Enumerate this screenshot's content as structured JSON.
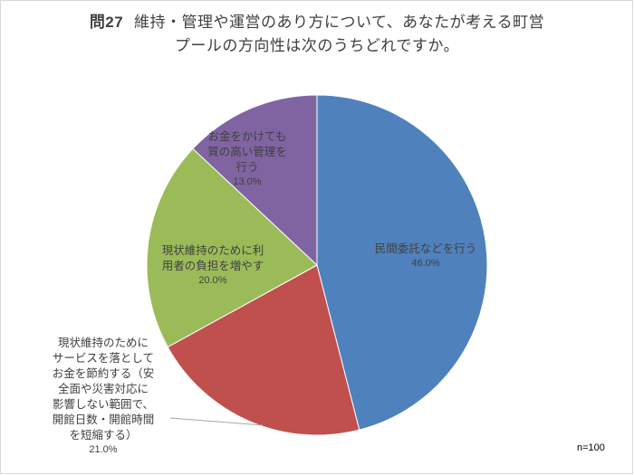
{
  "chart_data": {
    "type": "pie",
    "title_prefix": "問27",
    "title_line1": "維持・管理や運営のあり方について、あなたが考える町営",
    "title_line2": "プールの方向性は次のうちどれですか。",
    "title": "問27 維持・管理や運営のあり方について、あなたが考える町営プールの方向性は次のうちどれですか。",
    "categories": [
      "民間委託などを行う",
      "現状維持のためにサービスを落としてお金を節約する（安全面や災害対応に影響しない範囲で、開館日数・開館時間を短縮する）",
      "現状維持のために利用者の負担を増やす",
      "お金をかけても質の高い管理を行う"
    ],
    "values": [
      46.0,
      21.0,
      20.0,
      13.0
    ],
    "value_labels": [
      "46.0%",
      "21.0%",
      "20.0%",
      "13.0%"
    ],
    "colors": [
      "#4F81BD",
      "#C0504D",
      "#9BBB59",
      "#8064A2"
    ],
    "start_angle": "12 o'clock, clockwise",
    "legend": "none (data labels on slices)",
    "annotation": "n=100"
  },
  "labels": {
    "s0": {
      "lines": [
        "民間委託などを行う"
      ],
      "pct": "46.0%"
    },
    "s1": {
      "lines": [
        "現状維持のために",
        "サービスを落として",
        "お金を節約する（安",
        "全面や災害対応に",
        "影響しない範囲で、",
        "開館日数・開館時間",
        "を短縮する）"
      ],
      "pct": "21.0%"
    },
    "s2": {
      "lines": [
        "現状維持のために利",
        "用者の負担を増やす"
      ],
      "pct": "20.0%"
    },
    "s3": {
      "lines": [
        "お金をかけても",
        "質の高い管理を",
        "行う"
      ],
      "pct": "13.0%"
    }
  },
  "footer": {
    "n": "n=100"
  }
}
